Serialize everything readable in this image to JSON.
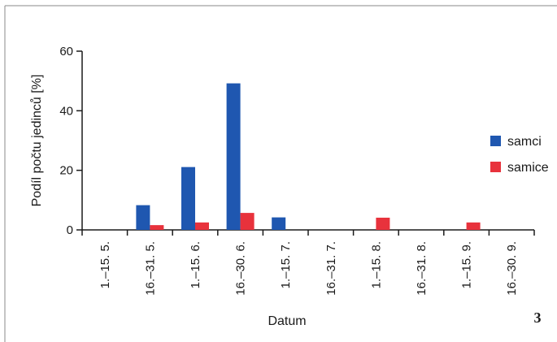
{
  "figure_number": "3",
  "chart_data": {
    "type": "bar",
    "categories": [
      "1.–15. 5.",
      "16.–31. 5.",
      "1.–15. 6.",
      "16.–30. 6.",
      "1.–15. 7.",
      "16.–31. 7.",
      "1.–15. 8.",
      "16.–31. 8.",
      "1.–15. 9.",
      "16.–30. 9."
    ],
    "series": [
      {
        "name": "samci",
        "color": "#1f57b0",
        "values": [
          0,
          8.3,
          21.1,
          49.2,
          4.2,
          0,
          0,
          0,
          0,
          0
        ]
      },
      {
        "name": "samice",
        "color": "#e8323c",
        "values": [
          0,
          1.6,
          2.5,
          5.7,
          0,
          0,
          4.1,
          0,
          2.5,
          0
        ]
      }
    ],
    "xlabel": "Datum",
    "ylabel": "Podíl počtu jedinců [%]",
    "ylim": [
      0,
      60
    ],
    "yticks": [
      0,
      20,
      40,
      60
    ],
    "grid": false,
    "legend_position": "right"
  }
}
